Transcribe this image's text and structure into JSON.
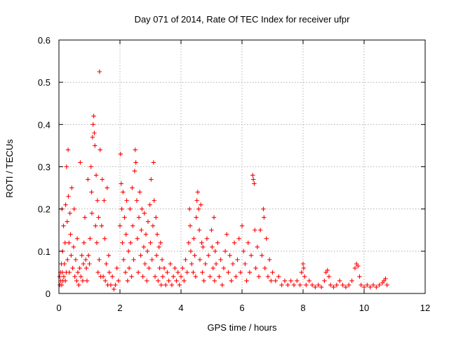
{
  "chart_data": {
    "type": "scatter",
    "title": "Day 071 of 2014, Rate Of TEC Index for receiver ufpr",
    "xlabel": "GPS time / hours",
    "ylabel": "ROTI / TECUs",
    "xlim": [
      0,
      12
    ],
    "ylim": [
      0,
      0.6
    ],
    "xticks": [
      0,
      2,
      4,
      6,
      8,
      10,
      12
    ],
    "yticks": [
      0,
      0.1,
      0.2,
      0.3,
      0.4,
      0.5,
      0.6
    ],
    "xtick_labels": [
      "0",
      "2",
      "4",
      "6",
      "8",
      "10",
      "12"
    ],
    "ytick_labels": [
      "0",
      "0.1",
      "0.2",
      "0.3",
      "0.4",
      "0.5",
      "0.6"
    ],
    "grid": true,
    "marker": "+",
    "color": "#ff0000",
    "series": [
      {
        "name": "ROTI",
        "points": [
          [
            0.02,
            0.04
          ],
          [
            0.03,
            0.02
          ],
          [
            0.05,
            0.05
          ],
          [
            0.06,
            0.03
          ],
          [
            0.08,
            0.07
          ],
          [
            0.09,
            0.02
          ],
          [
            0.1,
            0.2
          ],
          [
            0.11,
            0.05
          ],
          [
            0.12,
            0.1
          ],
          [
            0.13,
            0.03
          ],
          [
            0.15,
            0.16
          ],
          [
            0.16,
            0.04
          ],
          [
            0.18,
            0.07
          ],
          [
            0.2,
            0.12
          ],
          [
            0.21,
            0.03
          ],
          [
            0.22,
            0.21
          ],
          [
            0.24,
            0.05
          ],
          [
            0.25,
            0.3
          ],
          [
            0.27,
            0.17
          ],
          [
            0.28,
            0.08
          ],
          [
            0.3,
            0.34
          ],
          [
            0.31,
            0.23
          ],
          [
            0.33,
            0.12
          ],
          [
            0.34,
            0.05
          ],
          [
            0.36,
            0.19
          ],
          [
            0.38,
            0.14
          ],
          [
            0.4,
            0.09
          ],
          [
            0.42,
            0.25
          ],
          [
            0.45,
            0.06
          ],
          [
            0.48,
            0.11
          ],
          [
            0.5,
            0.2
          ],
          [
            0.52,
            0.04
          ],
          [
            0.55,
            0.08
          ],
          [
            0.58,
            0.03
          ],
          [
            0.6,
            0.13
          ],
          [
            0.62,
            0.05
          ],
          [
            0.65,
            0.02
          ],
          [
            0.68,
            0.06
          ],
          [
            0.7,
            0.31
          ],
          [
            0.72,
            0.04
          ],
          [
            0.75,
            0.09
          ],
          [
            0.78,
            0.03
          ],
          [
            0.8,
            0.07
          ],
          [
            0.82,
            0.12
          ],
          [
            0.85,
            0.18
          ],
          [
            0.88,
            0.08
          ],
          [
            0.9,
            0.06
          ],
          [
            0.92,
            0.03
          ],
          [
            0.95,
            0.27
          ],
          [
            0.97,
            0.09
          ],
          [
            1.0,
            0.07
          ],
          [
            1.02,
            0.13
          ],
          [
            1.05,
            0.3
          ],
          [
            1.07,
            0.24
          ],
          [
            1.08,
            0.19
          ],
          [
            1.1,
            0.37
          ],
          [
            1.12,
            0.4
          ],
          [
            1.14,
            0.42
          ],
          [
            1.16,
            0.38
          ],
          [
            1.18,
            0.35
          ],
          [
            1.2,
            0.16
          ],
          [
            1.22,
            0.28
          ],
          [
            1.24,
            0.12
          ],
          [
            1.26,
            0.22
          ],
          [
            1.28,
            0.05
          ],
          [
            1.3,
            0.18
          ],
          [
            1.32,
            0.08
          ],
          [
            1.33,
            0.525
          ],
          [
            1.35,
            0.34
          ],
          [
            1.37,
            0.04
          ],
          [
            1.4,
            0.16
          ],
          [
            1.42,
            0.27
          ],
          [
            1.45,
            0.04
          ],
          [
            1.48,
            0.22
          ],
          [
            1.5,
            0.13
          ],
          [
            1.52,
            0.03
          ],
          [
            1.55,
            0.07
          ],
          [
            1.58,
            0.25
          ],
          [
            1.6,
            0.02
          ],
          [
            1.63,
            0.09
          ],
          [
            1.65,
            0.05
          ],
          [
            1.7,
            0.02
          ],
          [
            1.75,
            0.04
          ],
          [
            1.8,
            0.01
          ],
          [
            1.85,
            0.02
          ],
          [
            1.9,
            0.06
          ],
          [
            1.95,
            0.03
          ],
          [
            2.0,
            0.16
          ],
          [
            2.02,
            0.33
          ],
          [
            2.04,
            0.26
          ],
          [
            2.06,
            0.2
          ],
          [
            2.08,
            0.12
          ],
          [
            2.1,
            0.24
          ],
          [
            2.12,
            0.08
          ],
          [
            2.15,
            0.18
          ],
          [
            2.18,
            0.05
          ],
          [
            2.2,
            0.14
          ],
          [
            2.22,
            0.22
          ],
          [
            2.25,
            0.03
          ],
          [
            2.28,
            0.1
          ],
          [
            2.3,
            0.06
          ],
          [
            2.33,
            0.2
          ],
          [
            2.35,
            0.12
          ],
          [
            2.38,
            0.04
          ],
          [
            2.4,
            0.25
          ],
          [
            2.42,
            0.16
          ],
          [
            2.45,
            0.08
          ],
          [
            2.48,
            0.29
          ],
          [
            2.5,
            0.34
          ],
          [
            2.52,
            0.31
          ],
          [
            2.55,
            0.22
          ],
          [
            2.57,
            0.13
          ],
          [
            2.6,
            0.05
          ],
          [
            2.62,
            0.18
          ],
          [
            2.65,
            0.24
          ],
          [
            2.68,
            0.09
          ],
          [
            2.7,
            0.15
          ],
          [
            2.72,
            0.2
          ],
          [
            2.75,
            0.04
          ],
          [
            2.78,
            0.11
          ],
          [
            2.8,
            0.19
          ],
          [
            2.82,
            0.07
          ],
          [
            2.85,
            0.14
          ],
          [
            2.88,
            0.03
          ],
          [
            2.9,
            0.1
          ],
          [
            2.92,
            0.17
          ],
          [
            2.95,
            0.06
          ],
          [
            2.98,
            0.21
          ],
          [
            3.0,
            0.12
          ],
          [
            3.02,
            0.27
          ],
          [
            3.05,
            0.08
          ],
          [
            3.08,
            0.16
          ],
          [
            3.1,
            0.31
          ],
          [
            3.12,
            0.22
          ],
          [
            3.15,
            0.04
          ],
          [
            3.18,
            0.18
          ],
          [
            3.2,
            0.09
          ],
          [
            3.22,
            0.14
          ],
          [
            3.25,
            0.03
          ],
          [
            3.28,
            0.11
          ],
          [
            3.3,
            0.06
          ],
          [
            3.33,
            0.12
          ],
          [
            3.35,
            0.02
          ],
          [
            3.38,
            0.08
          ],
          [
            3.4,
            0.04
          ],
          [
            3.45,
            0.06
          ],
          [
            3.5,
            0.02
          ],
          [
            3.55,
            0.05
          ],
          [
            3.6,
            0.03
          ],
          [
            3.65,
            0.07
          ],
          [
            3.7,
            0.02
          ],
          [
            3.75,
            0.04
          ],
          [
            3.8,
            0.06
          ],
          [
            3.85,
            0.03
          ],
          [
            3.9,
            0.05
          ],
          [
            3.95,
            0.02
          ],
          [
            4.0,
            0.04
          ],
          [
            4.05,
            0.06
          ],
          [
            4.1,
            0.03
          ],
          [
            4.15,
            0.08
          ],
          [
            4.2,
            0.05
          ],
          [
            4.25,
            0.12
          ],
          [
            4.28,
            0.2
          ],
          [
            4.3,
            0.16
          ],
          [
            4.32,
            0.1
          ],
          [
            4.35,
            0.07
          ],
          [
            4.4,
            0.05
          ],
          [
            4.42,
            0.13
          ],
          [
            4.45,
            0.09
          ],
          [
            4.48,
            0.04
          ],
          [
            4.5,
            0.18
          ],
          [
            4.52,
            0.22
          ],
          [
            4.55,
            0.24
          ],
          [
            4.58,
            0.2
          ],
          [
            4.6,
            0.15
          ],
          [
            4.62,
            0.08
          ],
          [
            4.65,
            0.21
          ],
          [
            4.68,
            0.12
          ],
          [
            4.7,
            0.05
          ],
          [
            4.72,
            0.11
          ],
          [
            4.75,
            0.03
          ],
          [
            4.8,
            0.07
          ],
          [
            4.85,
            0.13
          ],
          [
            4.9,
            0.09
          ],
          [
            4.95,
            0.04
          ],
          [
            5.0,
            0.15
          ],
          [
            5.02,
            0.11
          ],
          [
            5.05,
            0.06
          ],
          [
            5.08,
            0.18
          ],
          [
            5.1,
            0.03
          ],
          [
            5.12,
            0.1
          ],
          [
            5.15,
            0.07
          ],
          [
            5.2,
            0.12
          ],
          [
            5.25,
            0.04
          ],
          [
            5.3,
            0.08
          ],
          [
            5.35,
            0.02
          ],
          [
            5.4,
            0.06
          ],
          [
            5.45,
            0.1
          ],
          [
            5.5,
            0.14
          ],
          [
            5.55,
            0.05
          ],
          [
            5.6,
            0.09
          ],
          [
            5.65,
            0.03
          ],
          [
            5.7,
            0.07
          ],
          [
            5.75,
            0.12
          ],
          [
            5.8,
            0.04
          ],
          [
            5.85,
            0.08
          ],
          [
            5.9,
            0.13
          ],
          [
            5.95,
            0.05
          ],
          [
            6.0,
            0.16
          ],
          [
            6.05,
            0.1
          ],
          [
            6.1,
            0.07
          ],
          [
            6.15,
            0.03
          ],
          [
            6.2,
            0.12
          ],
          [
            6.25,
            0.05
          ],
          [
            6.3,
            0.09
          ],
          [
            6.35,
            0.28
          ],
          [
            6.37,
            0.27
          ],
          [
            6.4,
            0.26
          ],
          [
            6.42,
            0.15
          ],
          [
            6.45,
            0.06
          ],
          [
            6.5,
            0.11
          ],
          [
            6.55,
            0.04
          ],
          [
            6.6,
            0.15
          ],
          [
            6.65,
            0.09
          ],
          [
            6.7,
            0.2
          ],
          [
            6.72,
            0.18
          ],
          [
            6.75,
            0.06
          ],
          [
            6.8,
            0.13
          ],
          [
            6.85,
            0.04
          ],
          [
            6.9,
            0.08
          ],
          [
            6.95,
            0.03
          ],
          [
            7.0,
            0.05
          ],
          [
            7.1,
            0.03
          ],
          [
            7.2,
            0.04
          ],
          [
            7.3,
            0.02
          ],
          [
            7.4,
            0.03
          ],
          [
            7.5,
            0.02
          ],
          [
            7.6,
            0.03
          ],
          [
            7.7,
            0.02
          ],
          [
            7.8,
            0.03
          ],
          [
            7.9,
            0.02
          ],
          [
            7.95,
            0.05
          ],
          [
            8.0,
            0.07
          ],
          [
            8.02,
            0.06
          ],
          [
            8.05,
            0.04
          ],
          [
            8.1,
            0.02
          ],
          [
            8.2,
            0.03
          ],
          [
            8.3,
            0.02
          ],
          [
            8.4,
            0.015
          ],
          [
            8.5,
            0.02
          ],
          [
            8.6,
            0.015
          ],
          [
            8.7,
            0.03
          ],
          [
            8.75,
            0.05
          ],
          [
            8.8,
            0.055
          ],
          [
            8.85,
            0.04
          ],
          [
            8.9,
            0.02
          ],
          [
            9.0,
            0.015
          ],
          [
            9.1,
            0.02
          ],
          [
            9.2,
            0.03
          ],
          [
            9.3,
            0.02
          ],
          [
            9.4,
            0.015
          ],
          [
            9.5,
            0.02
          ],
          [
            9.6,
            0.03
          ],
          [
            9.7,
            0.06
          ],
          [
            9.75,
            0.07
          ],
          [
            9.8,
            0.065
          ],
          [
            9.85,
            0.04
          ],
          [
            9.9,
            0.02
          ],
          [
            10.0,
            0.015
          ],
          [
            10.1,
            0.02
          ],
          [
            10.2,
            0.015
          ],
          [
            10.3,
            0.02
          ],
          [
            10.4,
            0.015
          ],
          [
            10.5,
            0.02
          ],
          [
            10.6,
            0.025
          ],
          [
            10.65,
            0.03
          ],
          [
            10.7,
            0.035
          ],
          [
            10.75,
            0.02
          ]
        ]
      }
    ]
  }
}
